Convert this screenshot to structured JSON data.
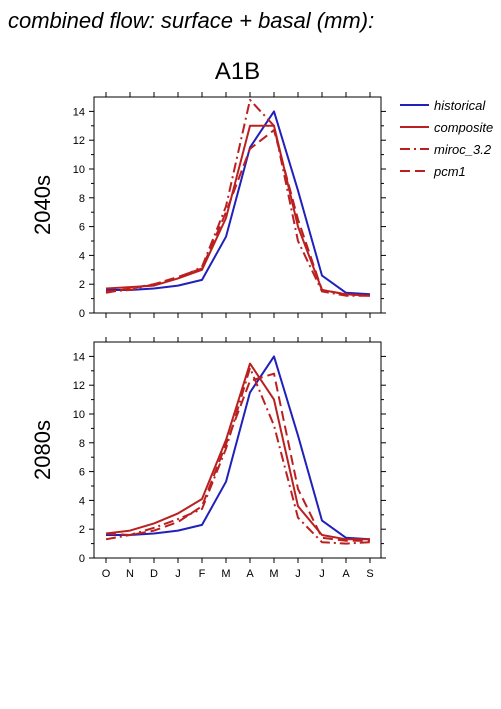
{
  "page": {
    "title": "combined flow: surface + basal (mm):",
    "scenario": "A1B"
  },
  "chart_data": [
    {
      "type": "line",
      "panel_label": "2040s",
      "categories": [
        "O",
        "N",
        "D",
        "J",
        "F",
        "M",
        "A",
        "M",
        "J",
        "J",
        "A",
        "S"
      ],
      "ylim": [
        0,
        15
      ],
      "yticks": [
        0,
        2,
        4,
        6,
        8,
        10,
        12,
        14
      ],
      "series": [
        {
          "name": "historical",
          "color": "#2020bb",
          "dash": "solid",
          "values": [
            1.6,
            1.6,
            1.7,
            1.9,
            2.3,
            5.3,
            11.5,
            14.0,
            8.5,
            2.6,
            1.4,
            1.3
          ]
        },
        {
          "name": "composite",
          "color": "#bb2020",
          "dash": "solid",
          "values": [
            1.7,
            1.8,
            1.9,
            2.4,
            3.0,
            6.6,
            13.0,
            13.0,
            6.0,
            1.6,
            1.3,
            1.2
          ]
        },
        {
          "name": "miroc_3.2",
          "color": "#bb2020",
          "dash": "dashdot",
          "values": [
            1.5,
            1.6,
            2.0,
            2.4,
            3.2,
            7.4,
            14.8,
            13.0,
            5.0,
            1.5,
            1.2,
            1.2
          ]
        },
        {
          "name": "pcm1",
          "color": "#bb2020",
          "dash": "dash",
          "values": [
            1.4,
            1.7,
            2.0,
            2.5,
            3.1,
            7.0,
            11.4,
            12.7,
            6.5,
            1.6,
            1.3,
            1.2
          ]
        }
      ]
    },
    {
      "type": "line",
      "panel_label": "2080s",
      "categories": [
        "O",
        "N",
        "D",
        "J",
        "F",
        "M",
        "A",
        "M",
        "J",
        "J",
        "A",
        "S"
      ],
      "ylim": [
        0,
        15
      ],
      "yticks": [
        0,
        2,
        4,
        6,
        8,
        10,
        12,
        14
      ],
      "series": [
        {
          "name": "historical",
          "color": "#2020bb",
          "dash": "solid",
          "values": [
            1.6,
            1.6,
            1.7,
            1.9,
            2.3,
            5.3,
            11.5,
            14.0,
            8.5,
            2.6,
            1.4,
            1.3
          ]
        },
        {
          "name": "composite",
          "color": "#bb2020",
          "dash": "solid",
          "values": [
            1.7,
            1.9,
            2.4,
            3.1,
            4.1,
            8.2,
            13.5,
            11.0,
            3.6,
            1.6,
            1.3,
            1.3
          ]
        },
        {
          "name": "miroc_3.2",
          "color": "#bb2020",
          "dash": "dashdot",
          "values": [
            1.3,
            1.6,
            2.1,
            2.7,
            3.4,
            7.6,
            13.2,
            9.2,
            2.8,
            1.1,
            1.0,
            1.1
          ]
        },
        {
          "name": "pcm1",
          "color": "#bb2020",
          "dash": "dash",
          "values": [
            1.7,
            1.6,
            1.9,
            2.5,
            3.6,
            7.9,
            12.3,
            12.8,
            4.8,
            1.4,
            1.2,
            1.2
          ]
        }
      ]
    }
  ],
  "legend": {
    "placement": "right",
    "items": [
      "historical",
      "composite",
      "miroc_3.2",
      "pcm1"
    ]
  }
}
